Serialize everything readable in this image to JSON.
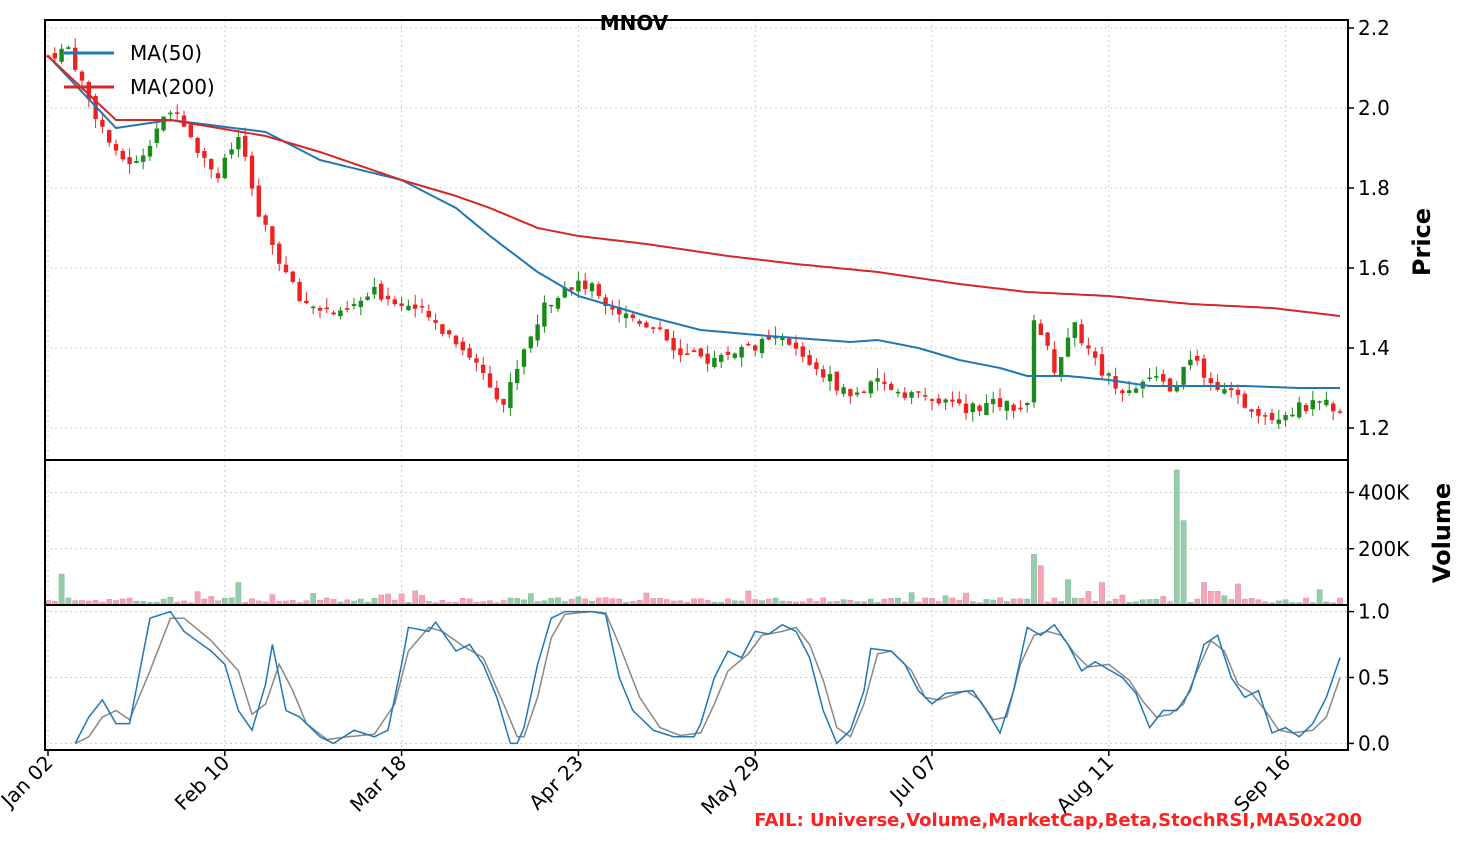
{
  "chart_data": {
    "type": "candlestick",
    "title": "MNOV",
    "footer_note": "FAIL: Universe,Volume,MarketCap,Beta,StochRSI,MA50x200",
    "x_tick_labels": [
      "Jan 02",
      "Feb 10",
      "Mar 18",
      "Apr 23",
      "May 29",
      "Jul 07",
      "Aug 11",
      "Sep 16"
    ],
    "x_tick_indices": [
      0,
      26,
      52,
      78,
      104,
      130,
      156,
      182
    ],
    "n_sessions": 191,
    "grid": true,
    "colors": {
      "up": "#1a8a1a",
      "down": "#ee2222",
      "ma50": "#1f77b4",
      "ma200": "#d62728",
      "stoch_k": "#1f77b4",
      "stoch_d": "#888888",
      "vol_up": "#99ccaa",
      "vol_down": "#f4a6b6",
      "fail": "#ff2020"
    },
    "panels": {
      "price": {
        "ylabel": "Price",
        "ylim": [
          1.12,
          2.22
        ],
        "yticks": [
          1.2,
          1.4,
          1.6,
          1.8,
          2.0,
          2.2
        ],
        "ytick_labels": [
          "1.2",
          "1.4",
          "1.6",
          "1.8",
          "2.0",
          "2.2"
        ],
        "legend_position": "top-left",
        "close_anchors": [
          [
            0,
            2.13
          ],
          [
            3,
            2.15
          ],
          [
            6,
            2.02
          ],
          [
            10,
            1.88
          ],
          [
            13,
            1.86
          ],
          [
            16,
            1.95
          ],
          [
            19,
            2.0
          ],
          [
            22,
            1.9
          ],
          [
            25,
            1.83
          ],
          [
            28,
            1.93
          ],
          [
            31,
            1.73
          ],
          [
            34,
            1.62
          ],
          [
            37,
            1.52
          ],
          [
            40,
            1.5
          ],
          [
            43,
            1.48
          ],
          [
            48,
            1.54
          ],
          [
            54,
            1.5
          ],
          [
            60,
            1.42
          ],
          [
            64,
            1.34
          ],
          [
            67,
            1.26
          ],
          [
            70,
            1.4
          ],
          [
            73,
            1.5
          ],
          [
            76,
            1.56
          ],
          [
            80,
            1.55
          ],
          [
            84,
            1.49
          ],
          [
            90,
            1.45
          ],
          [
            93,
            1.38
          ],
          [
            98,
            1.37
          ],
          [
            102,
            1.4
          ],
          [
            108,
            1.42
          ],
          [
            113,
            1.35
          ],
          [
            118,
            1.28
          ],
          [
            122,
            1.31
          ],
          [
            128,
            1.28
          ],
          [
            134,
            1.25
          ],
          [
            140,
            1.26
          ],
          [
            144,
            1.25
          ],
          [
            145,
            1.48
          ],
          [
            148,
            1.35
          ],
          [
            151,
            1.45
          ],
          [
            155,
            1.34
          ],
          [
            158,
            1.3
          ],
          [
            162,
            1.32
          ],
          [
            166,
            1.3
          ],
          [
            168,
            1.38
          ],
          [
            172,
            1.3
          ],
          [
            176,
            1.26
          ],
          [
            180,
            1.23
          ],
          [
            184,
            1.25
          ],
          [
            188,
            1.26
          ],
          [
            190,
            1.25
          ]
        ],
        "series": [
          {
            "name": "MA(50)",
            "anchors": [
              [
                0,
                2.13
              ],
              [
                10,
                1.95
              ],
              [
                18,
                1.97
              ],
              [
                32,
                1.94
              ],
              [
                40,
                1.87
              ],
              [
                52,
                1.82
              ],
              [
                60,
                1.75
              ],
              [
                65,
                1.68
              ],
              [
                72,
                1.59
              ],
              [
                78,
                1.53
              ],
              [
                88,
                1.48
              ],
              [
                96,
                1.445
              ],
              [
                106,
                1.43
              ],
              [
                118,
                1.415
              ],
              [
                122,
                1.42
              ],
              [
                128,
                1.4
              ],
              [
                134,
                1.37
              ],
              [
                140,
                1.35
              ],
              [
                144,
                1.33
              ],
              [
                150,
                1.33
              ],
              [
                156,
                1.32
              ],
              [
                162,
                1.305
              ],
              [
                168,
                1.305
              ],
              [
                176,
                1.305
              ],
              [
                184,
                1.3
              ],
              [
                190,
                1.3
              ]
            ]
          },
          {
            "name": "MA(200)",
            "anchors": [
              [
                0,
                2.13
              ],
              [
                10,
                1.97
              ],
              [
                18,
                1.97
              ],
              [
                32,
                1.93
              ],
              [
                40,
                1.89
              ],
              [
                52,
                1.82
              ],
              [
                60,
                1.78
              ],
              [
                65,
                1.75
              ],
              [
                72,
                1.7
              ],
              [
                78,
                1.68
              ],
              [
                88,
                1.66
              ],
              [
                100,
                1.63
              ],
              [
                110,
                1.61
              ],
              [
                122,
                1.59
              ],
              [
                134,
                1.56
              ],
              [
                144,
                1.54
              ],
              [
                156,
                1.53
              ],
              [
                168,
                1.51
              ],
              [
                180,
                1.5
              ],
              [
                190,
                1.48
              ]
            ]
          }
        ]
      },
      "volume": {
        "ylabel": "Volume",
        "ylim": [
          0,
          480000
        ],
        "yticks": [
          200000,
          400000
        ],
        "ytick_labels": [
          "200K",
          "400K"
        ],
        "spikes": [
          [
            2,
            110000
          ],
          [
            28,
            80000
          ],
          [
            145,
            180000
          ],
          [
            146,
            140000
          ],
          [
            150,
            90000
          ],
          [
            155,
            80000
          ],
          [
            166,
            480000
          ],
          [
            167,
            300000
          ],
          [
            175,
            75000
          ],
          [
            170,
            80000
          ]
        ]
      },
      "stoch": {
        "ylim": [
          -0.05,
          1.05
        ],
        "yticks": [
          0.0,
          0.5,
          1.0
        ],
        "ytick_labels": [
          "0.0",
          "0.5",
          "1.0"
        ],
        "k_anchors": [
          [
            4,
            0
          ],
          [
            6,
            0.2
          ],
          [
            8,
            0.33
          ],
          [
            10,
            0.15
          ],
          [
            12,
            0.15
          ],
          [
            15,
            0.95
          ],
          [
            18,
            1.0
          ],
          [
            20,
            0.85
          ],
          [
            24,
            0.7
          ],
          [
            26,
            0.6
          ],
          [
            28,
            0.25
          ],
          [
            30,
            0.1
          ],
          [
            32,
            0.45
          ],
          [
            33,
            0.75
          ],
          [
            35,
            0.25
          ],
          [
            37,
            0.2
          ],
          [
            40,
            0.05
          ],
          [
            42,
            0.0
          ],
          [
            45,
            0.1
          ],
          [
            48,
            0.05
          ],
          [
            50,
            0.1
          ],
          [
            52,
            0.6
          ],
          [
            53,
            0.88
          ],
          [
            56,
            0.85
          ],
          [
            57,
            0.92
          ],
          [
            60,
            0.7
          ],
          [
            62,
            0.75
          ],
          [
            64,
            0.6
          ],
          [
            66,
            0.35
          ],
          [
            68,
            0.0
          ],
          [
            69,
            0.0
          ],
          [
            70,
            0.12
          ],
          [
            72,
            0.6
          ],
          [
            74,
            0.95
          ],
          [
            76,
            1.0
          ],
          [
            80,
            1.0
          ],
          [
            82,
            0.98
          ],
          [
            84,
            0.5
          ],
          [
            86,
            0.25
          ],
          [
            89,
            0.1
          ],
          [
            92,
            0.05
          ],
          [
            95,
            0.05
          ],
          [
            96,
            0.15
          ],
          [
            98,
            0.5
          ],
          [
            100,
            0.7
          ],
          [
            102,
            0.65
          ],
          [
            104,
            0.85
          ],
          [
            106,
            0.83
          ],
          [
            108,
            0.9
          ],
          [
            110,
            0.85
          ],
          [
            112,
            0.65
          ],
          [
            114,
            0.25
          ],
          [
            116,
            0.0
          ],
          [
            118,
            0.1
          ],
          [
            120,
            0.4
          ],
          [
            121,
            0.72
          ],
          [
            124,
            0.7
          ],
          [
            126,
            0.6
          ],
          [
            128,
            0.4
          ],
          [
            130,
            0.3
          ],
          [
            132,
            0.38
          ],
          [
            136,
            0.4
          ],
          [
            138,
            0.25
          ],
          [
            140,
            0.08
          ],
          [
            142,
            0.4
          ],
          [
            144,
            0.88
          ],
          [
            146,
            0.82
          ],
          [
            148,
            0.9
          ],
          [
            150,
            0.75
          ],
          [
            152,
            0.55
          ],
          [
            154,
            0.62
          ],
          [
            158,
            0.5
          ],
          [
            160,
            0.38
          ],
          [
            162,
            0.12
          ],
          [
            164,
            0.25
          ],
          [
            166,
            0.25
          ],
          [
            168,
            0.4
          ],
          [
            170,
            0.75
          ],
          [
            172,
            0.82
          ],
          [
            174,
            0.5
          ],
          [
            176,
            0.35
          ],
          [
            178,
            0.4
          ],
          [
            180,
            0.08
          ],
          [
            182,
            0.12
          ],
          [
            184,
            0.05
          ],
          [
            186,
            0.15
          ],
          [
            188,
            0.35
          ],
          [
            190,
            0.65
          ],
          [
            193,
            0.55
          ],
          [
            195,
            0.65
          ]
        ],
        "d_anchors": [
          [
            4,
            0
          ],
          [
            6,
            0.05
          ],
          [
            8,
            0.2
          ],
          [
            10,
            0.25
          ],
          [
            12,
            0.18
          ],
          [
            15,
            0.55
          ],
          [
            18,
            0.95
          ],
          [
            20,
            0.95
          ],
          [
            24,
            0.78
          ],
          [
            28,
            0.55
          ],
          [
            30,
            0.22
          ],
          [
            32,
            0.3
          ],
          [
            34,
            0.6
          ],
          [
            36,
            0.4
          ],
          [
            38,
            0.15
          ],
          [
            41,
            0.03
          ],
          [
            44,
            0.05
          ],
          [
            48,
            0.07
          ],
          [
            51,
            0.3
          ],
          [
            53,
            0.7
          ],
          [
            56,
            0.88
          ],
          [
            58,
            0.85
          ],
          [
            61,
            0.74
          ],
          [
            64,
            0.65
          ],
          [
            67,
            0.3
          ],
          [
            69,
            0.05
          ],
          [
            70,
            0.05
          ],
          [
            72,
            0.35
          ],
          [
            74,
            0.8
          ],
          [
            76,
            0.98
          ],
          [
            80,
            1.0
          ],
          [
            82,
            0.99
          ],
          [
            84,
            0.75
          ],
          [
            87,
            0.35
          ],
          [
            90,
            0.12
          ],
          [
            93,
            0.06
          ],
          [
            96,
            0.08
          ],
          [
            98,
            0.3
          ],
          [
            100,
            0.55
          ],
          [
            103,
            0.68
          ],
          [
            105,
            0.82
          ],
          [
            108,
            0.85
          ],
          [
            110,
            0.88
          ],
          [
            112,
            0.75
          ],
          [
            114,
            0.48
          ],
          [
            116,
            0.12
          ],
          [
            118,
            0.05
          ],
          [
            120,
            0.3
          ],
          [
            122,
            0.68
          ],
          [
            124,
            0.7
          ],
          [
            127,
            0.55
          ],
          [
            129,
            0.35
          ],
          [
            131,
            0.33
          ],
          [
            135,
            0.4
          ],
          [
            137,
            0.33
          ],
          [
            139,
            0.18
          ],
          [
            141,
            0.2
          ],
          [
            143,
            0.6
          ],
          [
            145,
            0.82
          ],
          [
            147,
            0.85
          ],
          [
            149,
            0.82
          ],
          [
            151,
            0.68
          ],
          [
            153,
            0.58
          ],
          [
            156,
            0.6
          ],
          [
            159,
            0.48
          ],
          [
            161,
            0.32
          ],
          [
            163,
            0.2
          ],
          [
            165,
            0.22
          ],
          [
            167,
            0.3
          ],
          [
            169,
            0.55
          ],
          [
            171,
            0.78
          ],
          [
            173,
            0.7
          ],
          [
            175,
            0.45
          ],
          [
            177,
            0.38
          ],
          [
            179,
            0.25
          ],
          [
            181,
            0.1
          ],
          [
            183,
            0.08
          ],
          [
            186,
            0.1
          ],
          [
            188,
            0.2
          ],
          [
            190,
            0.5
          ],
          [
            193,
            0.62
          ],
          [
            195,
            0.62
          ]
        ]
      }
    }
  }
}
